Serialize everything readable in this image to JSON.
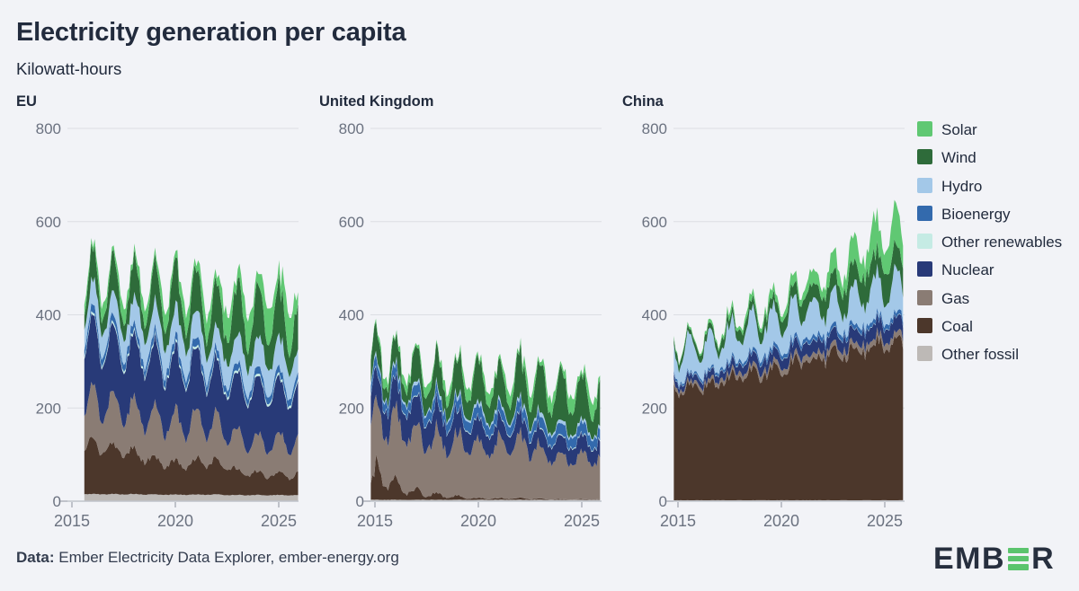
{
  "header": {
    "title": "Electricity generation per capita",
    "subtitle": "Kilowatt-hours"
  },
  "footer": {
    "label": "Data:",
    "source": " Ember Electricity Data Explorer, ember-energy.org"
  },
  "logo": {
    "text_left": "EMB",
    "text_right": "R",
    "bar_count": 3
  },
  "colors": {
    "background": "#f2f3f7",
    "text_dark": "#222b3d",
    "tick_label": "#6b7280",
    "gridline": "#dcdee3",
    "axis_line": "#c0c4cc",
    "tick_mark": "#aeb2bb",
    "logo_dark": "#272f3e",
    "logo_green": "#5bc46d"
  },
  "legend": {
    "items": [
      {
        "label": "Solar",
        "key": "solar",
        "color": "#60c873"
      },
      {
        "label": "Wind",
        "key": "wind",
        "color": "#2e6b3a"
      },
      {
        "label": "Hydro",
        "key": "hydro",
        "color": "#a3c8e8"
      },
      {
        "label": "Bioenergy",
        "key": "bioenergy",
        "color": "#336aad"
      },
      {
        "label": "Other renewables",
        "key": "other_renewables",
        "color": "#c5ebe4"
      },
      {
        "label": "Nuclear",
        "key": "nuclear",
        "color": "#283a78"
      },
      {
        "label": "Gas",
        "key": "gas",
        "color": "#8a7c74"
      },
      {
        "label": "Coal",
        "key": "coal",
        "color": "#4c372b"
      },
      {
        "label": "Other fossil",
        "key": "other_fossil",
        "color": "#bdb9b6"
      }
    ]
  },
  "chart_data": [
    {
      "type": "area",
      "stacked": true,
      "title": "EU",
      "unit": "kWh per capita per month",
      "x_start": 2015.6,
      "x_end": 2025.95,
      "annual_start_year": 2015,
      "ylim": [
        0,
        800
      ],
      "y_ticks": [
        0,
        200,
        400,
        600,
        800
      ],
      "x_ticks": [
        2015,
        2020,
        2025
      ],
      "grid": true,
      "legend_position": "right-of-figure",
      "series_order": "bottom-to-top",
      "series": [
        {
          "name": "Other fossil",
          "key": "other_fossil",
          "color": "#bdb9b6",
          "annual": [
            15,
            15,
            15,
            15,
            14,
            14,
            14,
            14,
            13,
            13,
            13
          ],
          "amp": 0.04,
          "phase": 0,
          "noise": 0.05
        },
        {
          "name": "Coal",
          "key": "coal",
          "color": "#4c372b",
          "annual": [
            105,
            100,
            96,
            88,
            74,
            62,
            70,
            70,
            52,
            45,
            42
          ],
          "amp": 0.15,
          "phase": 0,
          "noise": 0.1
        },
        {
          "name": "Gas",
          "key": "gas",
          "color": "#8a7c74",
          "annual": [
            85,
            90,
            92,
            90,
            92,
            86,
            88,
            80,
            70,
            66,
            70
          ],
          "amp": 0.25,
          "phase": 0.02,
          "noise": 0.1
        },
        {
          "name": "Nuclear",
          "key": "nuclear",
          "color": "#283a78",
          "annual": [
            135,
            132,
            130,
            128,
            126,
            120,
            122,
            104,
            110,
            112,
            108
          ],
          "amp": 0.1,
          "phase": 0,
          "noise": 0.05
        },
        {
          "name": "Other renewables",
          "key": "other_renewables",
          "color": "#c5ebe4",
          "annual": [
            5,
            5,
            5,
            5,
            5,
            5,
            5,
            5,
            5,
            5,
            5
          ],
          "amp": 0.03,
          "phase": 0,
          "noise": 0.05
        },
        {
          "name": "Bioenergy",
          "key": "bioenergy",
          "color": "#336aad",
          "annual": [
            16,
            16,
            16,
            16,
            16,
            16,
            16,
            15,
            15,
            15,
            15
          ],
          "amp": 0.05,
          "phase": 0,
          "noise": 0.06
        },
        {
          "name": "Hydro",
          "key": "hydro",
          "color": "#a3c8e8",
          "annual": [
            55,
            52,
            48,
            54,
            56,
            60,
            58,
            48,
            58,
            62,
            57
          ],
          "amp": 0.15,
          "phase": 0.2,
          "noise": 0.14
        },
        {
          "name": "Wind",
          "key": "wind",
          "color": "#2e6b3a",
          "annual": [
            48,
            50,
            56,
            58,
            64,
            70,
            66,
            72,
            78,
            80,
            82
          ],
          "amp": 0.42,
          "phase": 0,
          "noise": 0.16
        },
        {
          "name": "Solar",
          "key": "solar",
          "color": "#60c873",
          "annual": [
            19,
            20,
            22,
            24,
            26,
            28,
            31,
            36,
            42,
            49,
            55
          ],
          "amp": 0.55,
          "phase": 0.46,
          "noise": 0.07
        }
      ]
    },
    {
      "type": "area",
      "stacked": true,
      "title": "United Kingdom",
      "unit": "kWh per capita per month",
      "x_start": 2014.8,
      "x_end": 2025.95,
      "annual_start_year": 2015,
      "ylim": [
        0,
        800
      ],
      "y_ticks": [
        0,
        200,
        400,
        600,
        800
      ],
      "x_ticks": [
        2015,
        2020,
        2025
      ],
      "grid": true,
      "legend_position": "right-of-figure",
      "series_order": "bottom-to-top",
      "series": [
        {
          "name": "Other fossil",
          "key": "other_fossil",
          "color": "#bdb9b6",
          "annual": [
            3,
            3,
            3,
            3,
            3,
            3,
            3,
            3,
            3,
            3,
            3
          ],
          "amp": 0.05,
          "phase": 0,
          "noise": 0.1
        },
        {
          "name": "Coal",
          "key": "coal",
          "color": "#4c372b",
          "annual": [
            60,
            28,
            16,
            10,
            6,
            3,
            3,
            3,
            2,
            1,
            1
          ],
          "amp": 0.5,
          "phase": 0,
          "noise": 0.3
        },
        {
          "name": "Gas",
          "key": "gas",
          "color": "#8a7c74",
          "annual": [
            115,
            128,
            120,
            118,
            118,
            108,
            112,
            118,
            102,
            88,
            84
          ],
          "amp": 0.2,
          "phase": 0.02,
          "noise": 0.12
        },
        {
          "name": "Nuclear",
          "key": "nuclear",
          "color": "#283a78",
          "annual": [
            60,
            62,
            60,
            55,
            48,
            44,
            40,
            42,
            37,
            36,
            34
          ],
          "amp": 0.04,
          "phase": 0,
          "noise": 0.05
        },
        {
          "name": "Other renewables",
          "key": "other_renewables",
          "color": "#c5ebe4",
          "annual": [
            2,
            2,
            2,
            2,
            2,
            2,
            2,
            2,
            2,
            2,
            2
          ],
          "amp": 0.03,
          "phase": 0,
          "noise": 0.08
        },
        {
          "name": "Bioenergy",
          "key": "bioenergy",
          "color": "#336aad",
          "annual": [
            20,
            20,
            21,
            22,
            23,
            23,
            23,
            22,
            22,
            23,
            23
          ],
          "amp": 0.08,
          "phase": 0,
          "noise": 0.08
        },
        {
          "name": "Hydro",
          "key": "hydro",
          "color": "#a3c8e8",
          "annual": [
            6,
            6,
            6,
            6,
            6,
            7,
            6,
            6,
            7,
            6,
            6
          ],
          "amp": 0.3,
          "phase": 0.05,
          "noise": 0.2
        },
        {
          "name": "Wind",
          "key": "wind",
          "color": "#2e6b3a",
          "annual": [
            44,
            42,
            50,
            54,
            60,
            66,
            58,
            68,
            72,
            74,
            72
          ],
          "amp": 0.42,
          "phase": 0,
          "noise": 0.17
        },
        {
          "name": "Solar",
          "key": "solar",
          "color": "#60c873",
          "annual": [
            12,
            13,
            14,
            15,
            16,
            17,
            18,
            19,
            20,
            21,
            22
          ],
          "amp": 0.68,
          "phase": 0.46,
          "noise": 0.08
        }
      ]
    },
    {
      "type": "area",
      "stacked": true,
      "title": "China",
      "unit": "kWh per capita per month",
      "x_start": 2014.8,
      "x_end": 2025.95,
      "annual_start_year": 2015,
      "ylim": [
        0,
        800
      ],
      "y_ticks": [
        0,
        200,
        400,
        600,
        800
      ],
      "x_ticks": [
        2015,
        2020,
        2025
      ],
      "grid": true,
      "legend_position": "right-of-figure",
      "series_order": "bottom-to-top",
      "series": [
        {
          "name": "Other fossil",
          "key": "other_fossil",
          "color": "#bdb9b6",
          "annual": [
            2,
            2,
            2,
            2,
            2,
            2,
            2,
            2,
            2,
            2,
            2
          ],
          "amp": 0.03,
          "phase": 0,
          "noise": 0.05
        },
        {
          "name": "Coal",
          "key": "coal",
          "color": "#4c372b",
          "annual": [
            238,
            242,
            252,
            264,
            272,
            280,
            298,
            308,
            320,
            326,
            332
          ],
          "amp": 0.08,
          "phase": 0.55,
          "amp2": 0.04,
          "phase2": 0,
          "noise": 0.05
        },
        {
          "name": "Gas",
          "key": "gas",
          "color": "#8a7c74",
          "annual": [
            7,
            8,
            9,
            10,
            11,
            11,
            12,
            13,
            13,
            14,
            14
          ],
          "amp": 0.1,
          "phase": 0,
          "noise": 0.1
        },
        {
          "name": "Nuclear",
          "key": "nuclear",
          "color": "#283a78",
          "annual": [
            11,
            14,
            16,
            19,
            22,
            23,
            26,
            26,
            27,
            29,
            31
          ],
          "amp": 0.05,
          "phase": 0.5,
          "noise": 0.06
        },
        {
          "name": "Other renewables",
          "key": "other_renewables",
          "color": "#c5ebe4",
          "annual": [
            1,
            1,
            1,
            1,
            1,
            1,
            1,
            1,
            1,
            1,
            1
          ],
          "amp": 0,
          "phase": 0,
          "noise": 0.05
        },
        {
          "name": "Bioenergy",
          "key": "bioenergy",
          "color": "#336aad",
          "annual": [
            4,
            5,
            6,
            7,
            8,
            9,
            9,
            10,
            10,
            10,
            10
          ],
          "amp": 0.03,
          "phase": 0,
          "noise": 0.06
        },
        {
          "name": "Hydro",
          "key": "hydro",
          "color": "#a3c8e8",
          "annual": [
            55,
            58,
            56,
            60,
            62,
            65,
            63,
            60,
            56,
            68,
            64
          ],
          "amp": 0.42,
          "phase": 0.54,
          "noise": 0.12
        },
        {
          "name": "Wind",
          "key": "wind",
          "color": "#2e6b3a",
          "annual": [
            12,
            14,
            17,
            20,
            23,
            27,
            34,
            39,
            46,
            53,
            59
          ],
          "amp": 0.2,
          "phase": 0.12,
          "noise": 0.15
        },
        {
          "name": "Solar",
          "key": "solar",
          "color": "#60c873",
          "annual": [
            3,
            5,
            8,
            11,
            13,
            16,
            21,
            28,
            38,
            52,
            64
          ],
          "amp": 0.32,
          "phase": 0.48,
          "noise": 0.08
        }
      ]
    }
  ]
}
